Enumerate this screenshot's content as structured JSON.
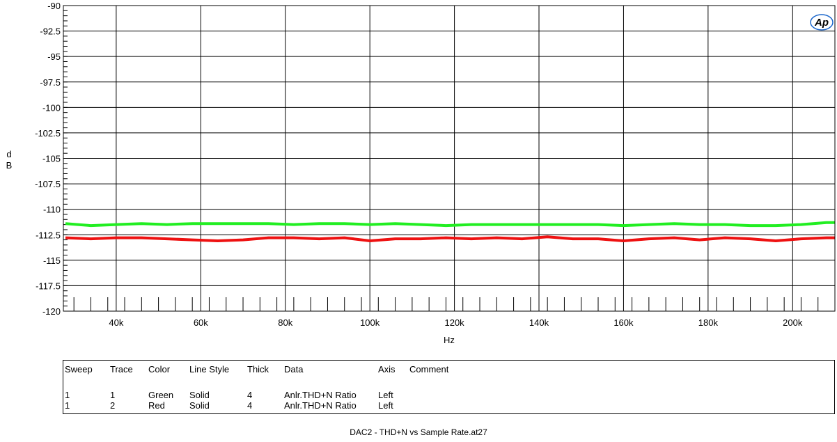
{
  "chart_data": {
    "type": "line",
    "title": "",
    "xlabel": "Hz",
    "ylabel": "dB",
    "xlim": [
      27500,
      210000
    ],
    "ylim": [
      -120,
      -90
    ],
    "x_ticks": [
      40000,
      60000,
      80000,
      100000,
      120000,
      140000,
      160000,
      180000,
      200000
    ],
    "x_tick_labels": [
      "40k",
      "60k",
      "80k",
      "100k",
      "120k",
      "140k",
      "160k",
      "180k",
      "200k"
    ],
    "y_ticks": [
      -90,
      -92.5,
      -95,
      -97.5,
      -100,
      -102.5,
      -105,
      -107.5,
      -110,
      -112.5,
      -115,
      -117.5,
      -120
    ],
    "y_tick_labels": [
      "-90",
      "-92.5",
      "-95",
      "-97.5",
      "-100",
      "-102.5",
      "-105",
      "-107.5",
      "-110",
      "-112.5",
      "-115",
      "-117.5",
      "-120"
    ],
    "grid": true,
    "x": [
      28000,
      34000,
      40000,
      46000,
      52000,
      58000,
      64000,
      70000,
      76000,
      82000,
      88000,
      94000,
      100000,
      106000,
      112000,
      118000,
      124000,
      130000,
      136000,
      142000,
      148000,
      154000,
      160000,
      166000,
      172000,
      178000,
      184000,
      190000,
      196000,
      202000,
      208000,
      210000
    ],
    "series": [
      {
        "color": "#22ee22",
        "values": [
          -111.4,
          -111.6,
          -111.5,
          -111.4,
          -111.5,
          -111.4,
          -111.4,
          -111.4,
          -111.4,
          -111.5,
          -111.4,
          -111.4,
          -111.5,
          -111.4,
          -111.5,
          -111.6,
          -111.5,
          -111.5,
          -111.5,
          -111.5,
          -111.5,
          -111.5,
          -111.6,
          -111.5,
          -111.4,
          -111.5,
          -111.5,
          -111.6,
          -111.6,
          -111.5,
          -111.3,
          -111.3
        ]
      },
      {
        "color": "#ee1111",
        "values": [
          -112.8,
          -112.9,
          -112.8,
          -112.8,
          -112.9,
          -113.0,
          -113.1,
          -113.0,
          -112.8,
          -112.8,
          -112.9,
          -112.8,
          -113.1,
          -112.9,
          -112.9,
          -112.8,
          -112.9,
          -112.8,
          -112.9,
          -112.7,
          -112.9,
          -112.9,
          -113.1,
          -112.9,
          -112.8,
          -113.0,
          -112.8,
          -112.9,
          -113.1,
          -112.9,
          -112.8,
          -112.8
        ]
      }
    ]
  },
  "legend": {
    "headers": {
      "sweep": "Sweep",
      "trace": "Trace",
      "color": "Color",
      "line_style": "Line Style",
      "thick": "Thick",
      "data": "Data",
      "axis": "Axis",
      "comment": "Comment"
    },
    "rows": [
      {
        "sweep": "1",
        "trace": "1",
        "color": "Green",
        "line_style": "Solid",
        "thick": "4",
        "data": "Anlr.THD+N Ratio",
        "axis": "Left"
      },
      {
        "sweep": "1",
        "trace": "2",
        "color": "Red",
        "line_style": "Solid",
        "thick": "4",
        "data": "Anlr.THD+N Ratio",
        "axis": "Left"
      }
    ]
  },
  "logo": {
    "text": "Ap",
    "color": "#1a66cc"
  },
  "footer": {
    "filename": "DAC2 - THD+N vs Sample Rate.at27"
  }
}
